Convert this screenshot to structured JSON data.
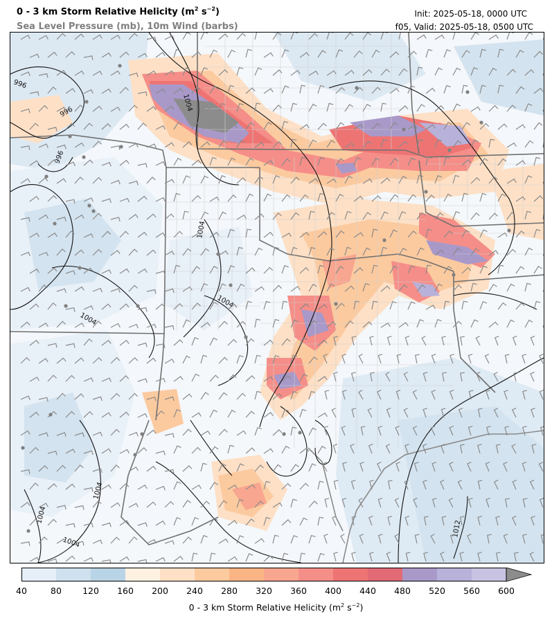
{
  "header": {
    "title": "0 - 3 km Storm Relative Helicity",
    "title_units": "(m",
    "title_units_sup1": "2",
    "title_units_mid": " s",
    "title_units_sup2": "−2",
    "title_units_end": ")",
    "subtitle": "Sea Level Pressure (mb), 10m Wind (barbs)",
    "init": "Init: 2025-05-18, 0000 UTC",
    "valid": "f05, Valid: 2025-05-18, 0500 UTC"
  },
  "colorbar": {
    "ticks": [
      "40",
      "80",
      "120",
      "160",
      "200",
      "240",
      "280",
      "320",
      "360",
      "400",
      "440",
      "480",
      "520",
      "560",
      "600"
    ],
    "colors": [
      "#e6eff8",
      "#cfe1ee",
      "#b9d4e6",
      "#fff1e2",
      "#fde0c6",
      "#fcca9f",
      "#fbb585",
      "#f8a690",
      "#f58e88",
      "#ee7474",
      "#e16a74",
      "#a899c9",
      "#b8b1d9",
      "#c9c3e3"
    ],
    "extend_color": "#8c8c8c",
    "label": "0 - 3 km Storm Relative Helicity (m",
    "label_sup1": "2",
    "label_mid": " s",
    "label_sup2": "−2",
    "label_end": ")"
  },
  "map": {
    "isobar_labels": [
      "996",
      "996",
      "996",
      "1004",
      "1004",
      "1004",
      "1004",
      "1004",
      "1004",
      "1004",
      "1012"
    ],
    "colors": {
      "state_border": "#707070",
      "county_border": "#c8c8c8",
      "isobar": "#111111",
      "barb": "#8a8a8a"
    }
  }
}
